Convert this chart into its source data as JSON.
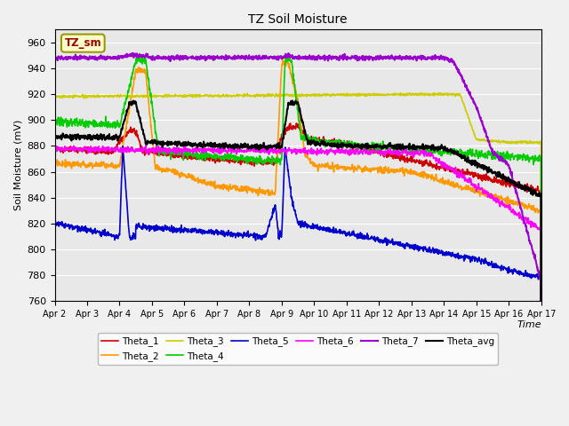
{
  "title": "TZ Soil Moisture",
  "xlabel": "Time",
  "ylabel": "Soil Moisture (mV)",
  "ylim": [
    760,
    970
  ],
  "bg_color": "#e8e8e8",
  "fig_color": "#f0f0f0",
  "legend_box_color": "#ffffcc",
  "legend_box_edge": "#999900",
  "legend_label_color": "#990000",
  "legend_label": "TZ_sm",
  "series_colors": {
    "Theta_1": "#cc0000",
    "Theta_2": "#ff9900",
    "Theta_3": "#cccc00",
    "Theta_4": "#00cc00",
    "Theta_5": "#0000cc",
    "Theta_6": "#ff00ff",
    "Theta_7": "#9900cc",
    "Theta_avg": "#000000"
  },
  "yticks": [
    760,
    780,
    800,
    820,
    840,
    860,
    880,
    900,
    920,
    940,
    960
  ],
  "xtick_labels": [
    "Apr 2",
    "Apr 3",
    "Apr 4",
    "Apr 5",
    "Apr 6",
    "Apr 7",
    "Apr 8",
    "Apr 9",
    "Apr 10",
    "Apr 11",
    "Apr 12",
    "Apr 13",
    "Apr 14",
    "Apr 15",
    "Apr 16",
    "Apr 17"
  ]
}
